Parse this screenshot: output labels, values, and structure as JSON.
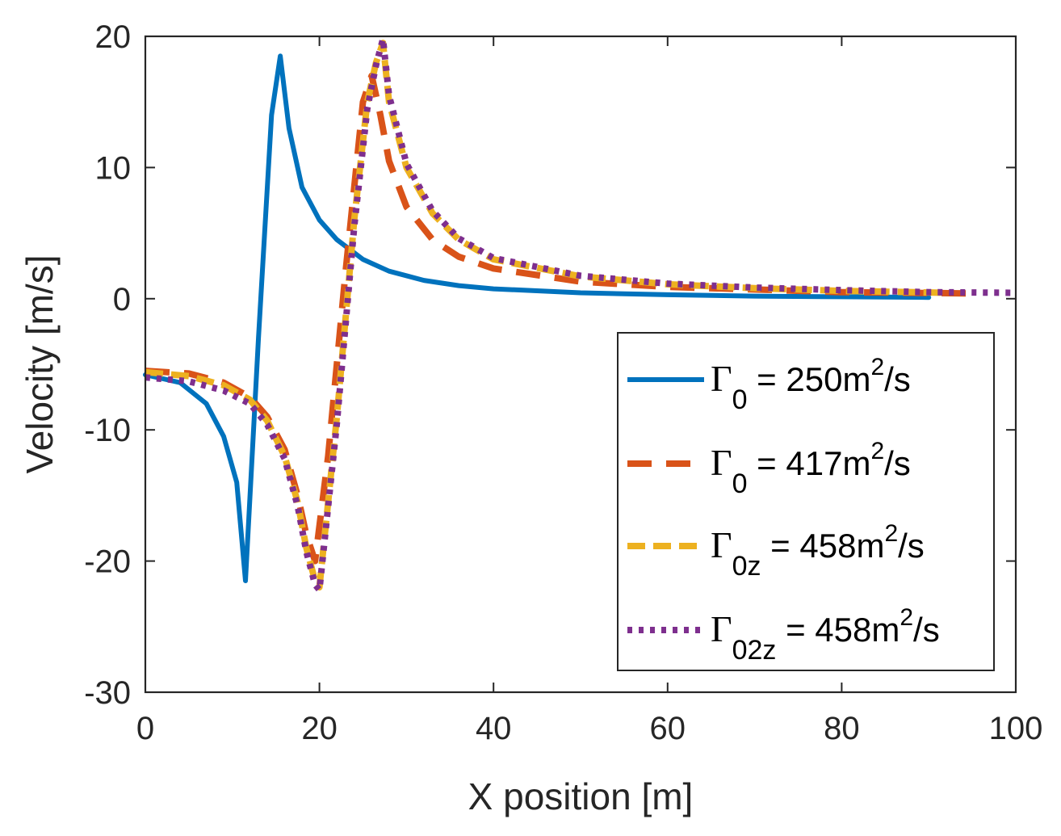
{
  "chart_data": {
    "type": "line",
    "title": "",
    "xlabel": "X position [m]",
    "ylabel": "Velocity [m/s]",
    "xlim": [
      0,
      100
    ],
    "ylim": [
      -30,
      20
    ],
    "xticks": [
      0,
      20,
      40,
      60,
      80,
      100
    ],
    "yticks": [
      -30,
      -20,
      -10,
      0,
      10,
      20
    ],
    "xtick_labels": [
      "0",
      "20",
      "40",
      "60",
      "80",
      "100"
    ],
    "ytick_labels": [
      "-30",
      "-20",
      "-10",
      "0",
      "10",
      "20"
    ],
    "grid": false,
    "legend_position": "bottom-right",
    "series": [
      {
        "name": "Γ0 = 250m2/s",
        "label": {
          "symbol": "Γ",
          "subscript": "0",
          "text": " = 250m",
          "superscript": "2",
          "unit": "/s"
        },
        "color": "#0072BD",
        "style": "solid",
        "x": [
          0,
          4,
          7,
          9,
          10.5,
          11.5,
          13,
          14.5,
          15.5,
          16.5,
          18,
          20,
          22,
          25,
          28,
          32,
          36,
          40,
          50,
          60,
          70,
          80,
          90
        ],
        "y": [
          -5.8,
          -6.4,
          -8,
          -10.5,
          -14,
          -21.5,
          -3,
          14,
          18.5,
          13,
          8.5,
          6,
          4.5,
          3,
          2.1,
          1.4,
          1,
          0.75,
          0.45,
          0.3,
          0.2,
          0.15,
          0.1
        ]
      },
      {
        "name": "Γ0 = 417m2/s",
        "label": {
          "symbol": "Γ",
          "subscript": "0",
          "text": " = 417m",
          "superscript": "2",
          "unit": "/s"
        },
        "color": "#D95319",
        "style": "dashed",
        "x": [
          0,
          5,
          9,
          12,
          14,
          16,
          17.5,
          18.5,
          19.5,
          21,
          23,
          25,
          26,
          27,
          28,
          30,
          33,
          36,
          40,
          50,
          60,
          70,
          80,
          95
        ],
        "y": [
          -5.5,
          -5.7,
          -6.4,
          -7.5,
          -9,
          -11.5,
          -15,
          -18,
          -20,
          -12,
          2,
          15,
          17,
          14,
          10.5,
          7,
          4.5,
          3.2,
          2.3,
          1.3,
          0.9,
          0.7,
          0.5,
          0.4
        ]
      },
      {
        "name": "Γ0z = 458m2/s",
        "label": {
          "symbol": "Γ",
          "subscript": "0z",
          "text": " = 458m",
          "superscript": "2",
          "unit": "/s"
        },
        "color": "#EDB120",
        "style": "dashdot",
        "x": [
          0,
          5,
          9,
          12,
          14,
          16,
          17.5,
          18.5,
          19.5,
          20,
          22,
          24,
          25.5,
          26.5,
          27.3,
          28,
          30,
          33,
          36,
          40,
          50,
          60,
          70,
          80,
          92
        ],
        "y": [
          -5.6,
          -5.9,
          -6.6,
          -7.7,
          -9.3,
          -12,
          -15.5,
          -19,
          -21.5,
          -22,
          -9,
          6,
          15,
          18,
          19.5,
          15,
          10,
          6.5,
          4.5,
          3,
          1.7,
          1.1,
          0.8,
          0.6,
          0.45
        ]
      },
      {
        "name": "Γ02z = 458m2/s",
        "label": {
          "symbol": "Γ",
          "subscript": "02z",
          "text": " = 458m",
          "superscript": "2",
          "unit": "/s"
        },
        "color": "#7E2F8E",
        "style": "dotted",
        "x": [
          0,
          5,
          9,
          12,
          14,
          16,
          17.5,
          18.5,
          19.5,
          20,
          22,
          24,
          25.5,
          26.5,
          27.3,
          28,
          30,
          33,
          36,
          40,
          50,
          60,
          70,
          80,
          90,
          100
        ],
        "y": [
          -6,
          -6.3,
          -7,
          -8,
          -9.6,
          -12.2,
          -15.8,
          -19.3,
          -21.8,
          -22.2,
          -9.5,
          5.5,
          14.5,
          17.8,
          19.8,
          15.5,
          10.3,
          6.7,
          4.6,
          3.1,
          1.75,
          1.15,
          0.85,
          0.65,
          0.5,
          0.45
        ]
      }
    ]
  }
}
